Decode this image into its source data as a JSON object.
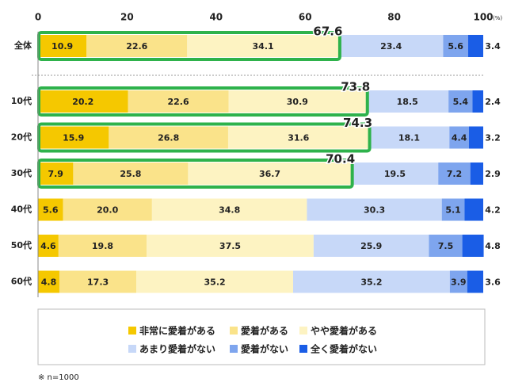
{
  "chart_data": {
    "type": "stacked-barh",
    "categories": [
      "全体",
      "10代",
      "20代",
      "30代",
      "40代",
      "50代",
      "60代"
    ],
    "series": [
      {
        "name": "非常に愛着がある",
        "color": "#f5c800",
        "values": [
          10.9,
          20.2,
          15.9,
          7.9,
          5.6,
          4.6,
          4.8
        ]
      },
      {
        "name": "愛着がある",
        "color": "#fae38a",
        "values": [
          22.6,
          22.6,
          26.8,
          25.8,
          20.0,
          19.8,
          17.3
        ]
      },
      {
        "name": "やや愛着がある",
        "color": "#fdf3c2",
        "values": [
          34.1,
          30.9,
          31.6,
          36.7,
          34.8,
          37.5,
          35.2
        ]
      },
      {
        "name": "あまり愛着がない",
        "color": "#c7d8f8",
        "values": [
          23.4,
          18.5,
          18.1,
          19.5,
          30.3,
          25.9,
          35.2
        ]
      },
      {
        "name": "愛着がない",
        "color": "#7ea5ee",
        "values": [
          5.6,
          5.4,
          4.4,
          7.2,
          5.1,
          7.5,
          3.9
        ]
      },
      {
        "name": "全く愛着がない",
        "color": "#1a5de6",
        "values": [
          3.4,
          2.4,
          3.2,
          2.9,
          4.2,
          4.8,
          3.6
        ]
      }
    ],
    "value_labels": [
      [
        "10.9",
        "20.2",
        "15.9",
        "7.9",
        "5.6",
        "4.6",
        "4.8"
      ],
      [
        "22.6",
        "22.6",
        "26.8",
        "25.8",
        "20.0",
        "19.8",
        "17.3"
      ],
      [
        "34.1",
        "30.9",
        "31.6",
        "36.7",
        "34.8",
        "37.5",
        "35.2"
      ],
      [
        "23.4",
        "18.5",
        "18.1",
        "19.5",
        "30.3",
        "25.9",
        "35.2"
      ],
      [
        "5.6",
        "5.4",
        "4.4",
        "7.2",
        "5.1",
        "7.5",
        "3.9"
      ],
      [
        "3.4",
        "2.4",
        "3.2",
        "2.9",
        "4.2",
        "4.8",
        "3.6"
      ]
    ],
    "highlight_totals": [
      67.6,
      73.8,
      74.3,
      70.4,
      null,
      null,
      null
    ],
    "highlight_color": "#2eb24b",
    "xlim": [
      0,
      100
    ],
    "xticks": [
      0,
      20,
      40,
      60,
      80,
      100
    ],
    "x_unit": "(%)",
    "note": "※ n=1000"
  }
}
